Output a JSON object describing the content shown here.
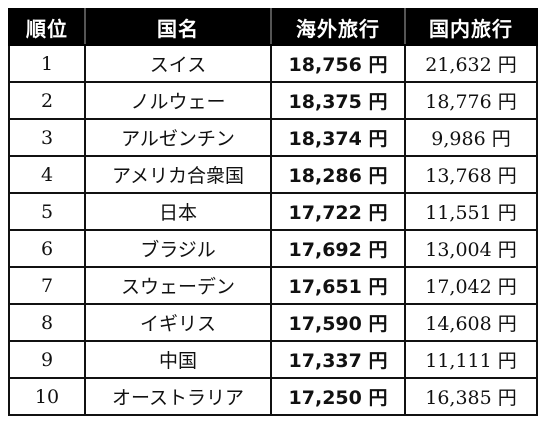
{
  "headers": {
    "rank": "順位",
    "country": "国名",
    "overseas": "海外旅行",
    "domestic": "国内旅行"
  },
  "rows": [
    {
      "rank": "1",
      "country": "スイス",
      "overseas": "18,756 円",
      "domestic": "21,632 円"
    },
    {
      "rank": "2",
      "country": "ノルウェー",
      "overseas": "18,375 円",
      "domestic": "18,776 円"
    },
    {
      "rank": "3",
      "country": "アルゼンチン",
      "overseas": "18,374 円",
      "domestic": "9,986 円"
    },
    {
      "rank": "4",
      "country": "アメリカ合衆国",
      "overseas": "18,286 円",
      "domestic": "13,768 円"
    },
    {
      "rank": "5",
      "country": "日本",
      "overseas": "17,722 円",
      "domestic": "11,551 円"
    },
    {
      "rank": "6",
      "country": "ブラジル",
      "overseas": "17,692 円",
      "domestic": "13,004 円"
    },
    {
      "rank": "7",
      "country": "スウェーデン",
      "overseas": "17,651 円",
      "domestic": "17,042 円"
    },
    {
      "rank": "8",
      "country": "イギリス",
      "overseas": "17,590 円",
      "domestic": "14,608 円"
    },
    {
      "rank": "9",
      "country": "中国",
      "overseas": "17,337 円",
      "domestic": "11,111 円"
    },
    {
      "rank": "10",
      "country": "オーストラリア",
      "overseas": "17,250 円",
      "domestic": "16,385 円"
    }
  ]
}
